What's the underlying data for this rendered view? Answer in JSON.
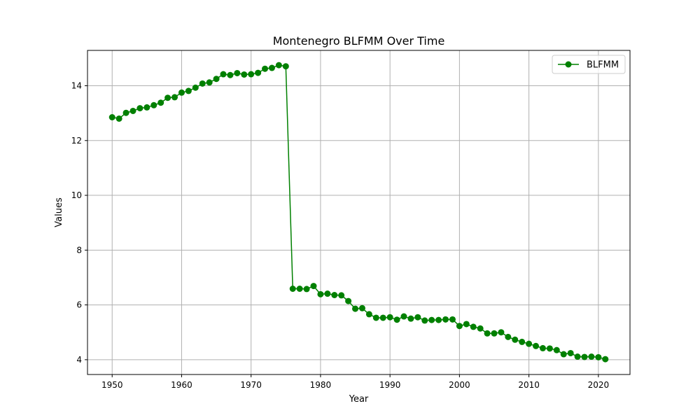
{
  "chart_data": {
    "type": "line",
    "title": "Montenegro BLFMM Over Time",
    "xlabel": "Year",
    "ylabel": "Values",
    "xlim": [
      1946.45,
      2024.55
    ],
    "ylim": [
      3.46,
      15.29
    ],
    "xticks": [
      1950,
      1960,
      1970,
      1980,
      1990,
      2000,
      2010,
      2020
    ],
    "yticks": [
      4,
      6,
      8,
      10,
      12,
      14
    ],
    "grid": true,
    "legend_position": "top-right",
    "x": [
      1950,
      1951,
      1952,
      1953,
      1954,
      1955,
      1956,
      1957,
      1958,
      1959,
      1960,
      1961,
      1962,
      1963,
      1964,
      1965,
      1966,
      1967,
      1968,
      1969,
      1970,
      1971,
      1972,
      1973,
      1974,
      1975,
      1976,
      1977,
      1978,
      1979,
      1980,
      1981,
      1982,
      1983,
      1984,
      1985,
      1986,
      1987,
      1988,
      1989,
      1990,
      1991,
      1992,
      1993,
      1994,
      1995,
      1996,
      1997,
      1998,
      1999,
      2000,
      2001,
      2002,
      2003,
      2004,
      2005,
      2006,
      2007,
      2008,
      2009,
      2010,
      2011,
      2012,
      2013,
      2014,
      2015,
      2016,
      2017,
      2018,
      2019,
      2020,
      2021
    ],
    "series": [
      {
        "name": "BLFMM",
        "color": "#008000",
        "marker": "circle",
        "values": [
          12.85,
          12.8,
          13.01,
          13.08,
          13.18,
          13.21,
          13.29,
          13.38,
          13.56,
          13.58,
          13.75,
          13.81,
          13.93,
          14.08,
          14.12,
          14.25,
          14.42,
          14.39,
          14.46,
          14.41,
          14.42,
          14.47,
          14.62,
          14.65,
          14.75,
          14.71,
          6.59,
          6.59,
          6.58,
          6.69,
          6.39,
          6.41,
          6.36,
          6.35,
          6.14,
          5.86,
          5.88,
          5.66,
          5.53,
          5.53,
          5.55,
          5.46,
          5.58,
          5.5,
          5.55,
          5.43,
          5.45,
          5.45,
          5.47,
          5.47,
          5.23,
          5.3,
          5.2,
          5.14,
          4.96,
          4.96,
          5.0,
          4.83,
          4.73,
          4.65,
          4.58,
          4.5,
          4.42,
          4.41,
          4.35,
          4.2,
          4.24,
          4.11,
          4.1,
          4.11,
          4.09,
          4.02
        ]
      }
    ]
  }
}
